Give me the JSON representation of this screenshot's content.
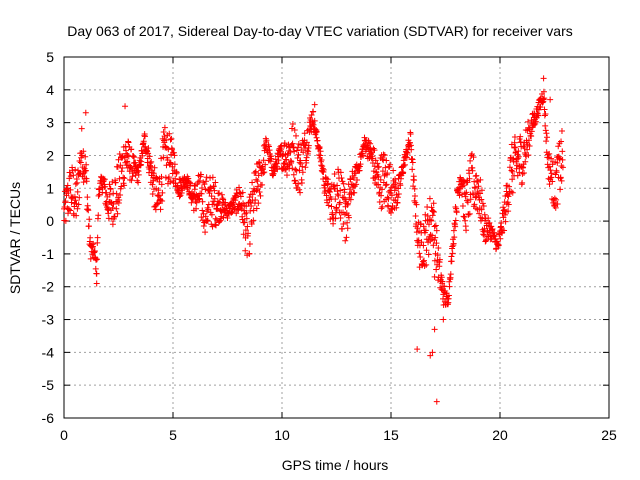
{
  "chart_data": {
    "type": "scatter",
    "title": "Day 063 of 2017, Sidereal Day-to-day VTEC variation (SDTVAR) for receiver vars",
    "xlabel": "GPS time / hours",
    "ylabel": "SDTVAR / TECUs",
    "xlim": [
      0,
      25
    ],
    "ylim": [
      -6,
      5
    ],
    "xticks": [
      0,
      5,
      10,
      15,
      20,
      25
    ],
    "yticks": [
      -6,
      -5,
      -4,
      -3,
      -2,
      -1,
      0,
      1,
      2,
      3,
      4,
      5
    ],
    "grid": true,
    "marker": "plus",
    "color": "#ff0000",
    "series": [
      {
        "name": "SDTVAR",
        "profile": [
          [
            0.0,
            0.2
          ],
          [
            0.3,
            1.0
          ],
          [
            0.6,
            0.6
          ],
          [
            0.8,
            2.2
          ],
          [
            1.0,
            1.5
          ],
          [
            1.2,
            -0.8
          ],
          [
            1.4,
            -1.0
          ],
          [
            1.5,
            -1.5
          ],
          [
            1.6,
            1.0
          ],
          [
            1.8,
            1.2
          ],
          [
            2.0,
            0.5
          ],
          [
            2.2,
            0.6
          ],
          [
            2.5,
            1.0
          ],
          [
            2.8,
            2.0
          ],
          [
            3.1,
            1.7
          ],
          [
            3.4,
            1.4
          ],
          [
            3.7,
            2.5
          ],
          [
            4.0,
            1.5
          ],
          [
            4.3,
            0.5
          ],
          [
            4.6,
            2.0
          ],
          [
            5.0,
            1.8
          ],
          [
            5.3,
            1.0
          ],
          [
            5.6,
            1.3
          ],
          [
            5.9,
            0.7
          ],
          [
            6.2,
            0.8
          ],
          [
            6.5,
            0.5
          ],
          [
            6.8,
            0.6
          ],
          [
            7.1,
            0.5
          ],
          [
            7.5,
            0.3
          ],
          [
            7.8,
            0.5
          ],
          [
            8.1,
            0.7
          ],
          [
            8.4,
            -0.5
          ],
          [
            8.7,
            0.6
          ],
          [
            9.0,
            1.3
          ],
          [
            9.3,
            2.3
          ],
          [
            9.6,
            1.5
          ],
          [
            9.9,
            2.0
          ],
          [
            10.2,
            2.0
          ],
          [
            10.5,
            2.2
          ],
          [
            10.8,
            1.6
          ],
          [
            11.1,
            2.3
          ],
          [
            11.4,
            3.2
          ],
          [
            11.7,
            2.2
          ],
          [
            12.0,
            1.0
          ],
          [
            12.3,
            0.5
          ],
          [
            12.6,
            1.2
          ],
          [
            12.9,
            0.0
          ],
          [
            13.2,
            1.0
          ],
          [
            13.5,
            1.6
          ],
          [
            13.8,
            2.4
          ],
          [
            14.1,
            2.0
          ],
          [
            14.4,
            1.2
          ],
          [
            14.7,
            1.3
          ],
          [
            15.0,
            1.0
          ],
          [
            15.3,
            0.8
          ],
          [
            15.6,
            1.8
          ],
          [
            15.9,
            2.5
          ],
          [
            16.1,
            0.5
          ],
          [
            16.3,
            -0.8
          ],
          [
            16.6,
            -0.5
          ],
          [
            16.9,
            0.2
          ],
          [
            17.2,
            -1.5
          ],
          [
            17.4,
            -2.2
          ],
          [
            17.6,
            -2.5
          ],
          [
            17.8,
            -1.0
          ],
          [
            18.0,
            0.5
          ],
          [
            18.2,
            1.5
          ],
          [
            18.4,
            0.3
          ],
          [
            18.7,
            1.2
          ],
          [
            19.0,
            1.0
          ],
          [
            19.3,
            -0.2
          ],
          [
            19.6,
            -0.3
          ],
          [
            19.9,
            -0.8
          ],
          [
            20.2,
            0.2
          ],
          [
            20.5,
            1.5
          ],
          [
            20.8,
            1.8
          ],
          [
            21.1,
            2.0
          ],
          [
            21.4,
            2.8
          ],
          [
            21.7,
            3.3
          ],
          [
            22.0,
            3.9
          ],
          [
            22.2,
            1.8
          ],
          [
            22.5,
            1.0
          ],
          [
            22.7,
            1.5
          ],
          [
            22.9,
            2.0
          ]
        ],
        "outliers": [
          [
            16.2,
            -3.9
          ],
          [
            16.8,
            -4.1
          ],
          [
            17.0,
            -3.3
          ],
          [
            17.1,
            -5.5
          ],
          [
            16.9,
            -4.0
          ],
          [
            17.4,
            -3.0
          ],
          [
            17.0,
            -1.7
          ],
          [
            12.9,
            -0.6
          ],
          [
            1.5,
            -1.9
          ],
          [
            8.5,
            -1.0
          ],
          [
            11.5,
            3.55
          ],
          [
            2.8,
            3.5
          ],
          [
            1.0,
            3.3
          ],
          [
            22.0,
            4.35
          ],
          [
            22.3,
            3.7
          ]
        ]
      }
    ]
  }
}
